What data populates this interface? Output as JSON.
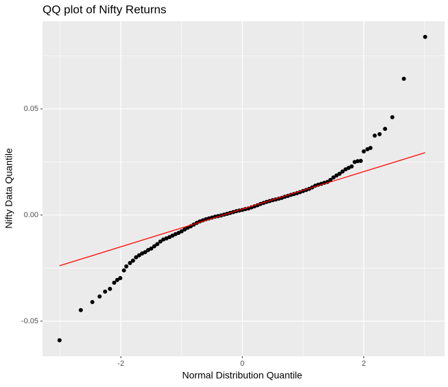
{
  "chart_data": {
    "type": "scatter",
    "title": "QQ plot of Nifty Returns",
    "xlabel": "Normal Distribution Quantile",
    "ylabel": "Nifty Data Quantile",
    "xlim": [
      -3.29,
      3.33
    ],
    "ylim": [
      -0.0665,
      0.0913
    ],
    "xticks": [
      -2,
      0,
      2
    ],
    "yticks": [
      -0.05,
      {
        "value": 0,
        "label": "0.00"
      },
      0.05
    ],
    "minor_xticks": [
      -3,
      -1,
      1,
      3
    ],
    "minor_yticks": [
      -0.025,
      0.025,
      0.075
    ],
    "grid": true,
    "color": "#000000",
    "x": [
      -3.01,
      -2.66,
      -2.47,
      -2.35,
      -2.26,
      -2.18,
      -2.11,
      -2.06,
      -2.01,
      -1.95,
      -1.91,
      -1.85,
      -1.8,
      -1.75,
      -1.7,
      -1.65,
      -1.6,
      -1.55,
      -1.5,
      -1.45,
      -1.4,
      -1.35,
      -1.3,
      -1.25,
      -1.2,
      -1.15,
      -1.1,
      -1.05,
      -1.0,
      -0.95,
      -0.9,
      -0.85,
      -0.8,
      -0.75,
      -0.7,
      -0.65,
      -0.6,
      -0.55,
      -0.5,
      -0.45,
      -0.4,
      -0.35,
      -0.3,
      -0.25,
      -0.2,
      -0.15,
      -0.1,
      -0.05,
      0.0,
      0.05,
      0.1,
      0.15,
      0.2,
      0.25,
      0.3,
      0.35,
      0.4,
      0.45,
      0.5,
      0.55,
      0.6,
      0.65,
      0.7,
      0.75,
      0.8,
      0.85,
      0.9,
      0.95,
      1.0,
      1.05,
      1.1,
      1.15,
      1.2,
      1.25,
      1.3,
      1.35,
      1.4,
      1.45,
      1.5,
      1.55,
      1.6,
      1.65,
      1.7,
      1.75,
      1.8,
      1.85,
      1.9,
      1.95,
      2.0,
      2.06,
      2.11,
      2.18,
      2.26,
      2.35,
      2.47,
      2.66,
      3.01
    ],
    "values": [
      -0.059,
      -0.0448,
      -0.041,
      -0.0384,
      -0.0361,
      -0.0348,
      -0.0319,
      -0.0306,
      -0.0297,
      -0.0261,
      -0.0242,
      -0.0226,
      -0.0215,
      -0.0199,
      -0.019,
      -0.0181,
      -0.0175,
      -0.0165,
      -0.0158,
      -0.0147,
      -0.0137,
      -0.0125,
      -0.0115,
      -0.011,
      -0.0104,
      -0.0097,
      -0.009,
      -0.0084,
      -0.0077,
      -0.0068,
      -0.006,
      -0.0053,
      -0.0045,
      -0.0037,
      -0.003,
      -0.0025,
      -0.002,
      -0.0016,
      -0.0012,
      -0.0008,
      -0.0005,
      -0.0002,
      0.0002,
      0.0006,
      0.001,
      0.0014,
      0.0018,
      0.0021,
      0.0024,
      0.0028,
      0.0031,
      0.0036,
      0.0041,
      0.0046,
      0.0052,
      0.0057,
      0.0062,
      0.0066,
      0.007,
      0.0073,
      0.0077,
      0.0081,
      0.0086,
      0.009,
      0.0095,
      0.0099,
      0.0103,
      0.0108,
      0.0113,
      0.0118,
      0.0123,
      0.013,
      0.0138,
      0.0143,
      0.0147,
      0.0152,
      0.0156,
      0.0165,
      0.0177,
      0.0186,
      0.0194,
      0.0205,
      0.0215,
      0.0222,
      0.0229,
      0.025,
      0.0254,
      0.0255,
      0.03,
      0.031,
      0.0316,
      0.0374,
      0.0381,
      0.0406,
      0.0461,
      0.0642,
      0.0839
    ],
    "reference_line": {
      "x": [
        -3.01,
        3.01
      ],
      "values": [
        -0.0239,
        0.0294
      ],
      "color": "#ff0000"
    }
  }
}
